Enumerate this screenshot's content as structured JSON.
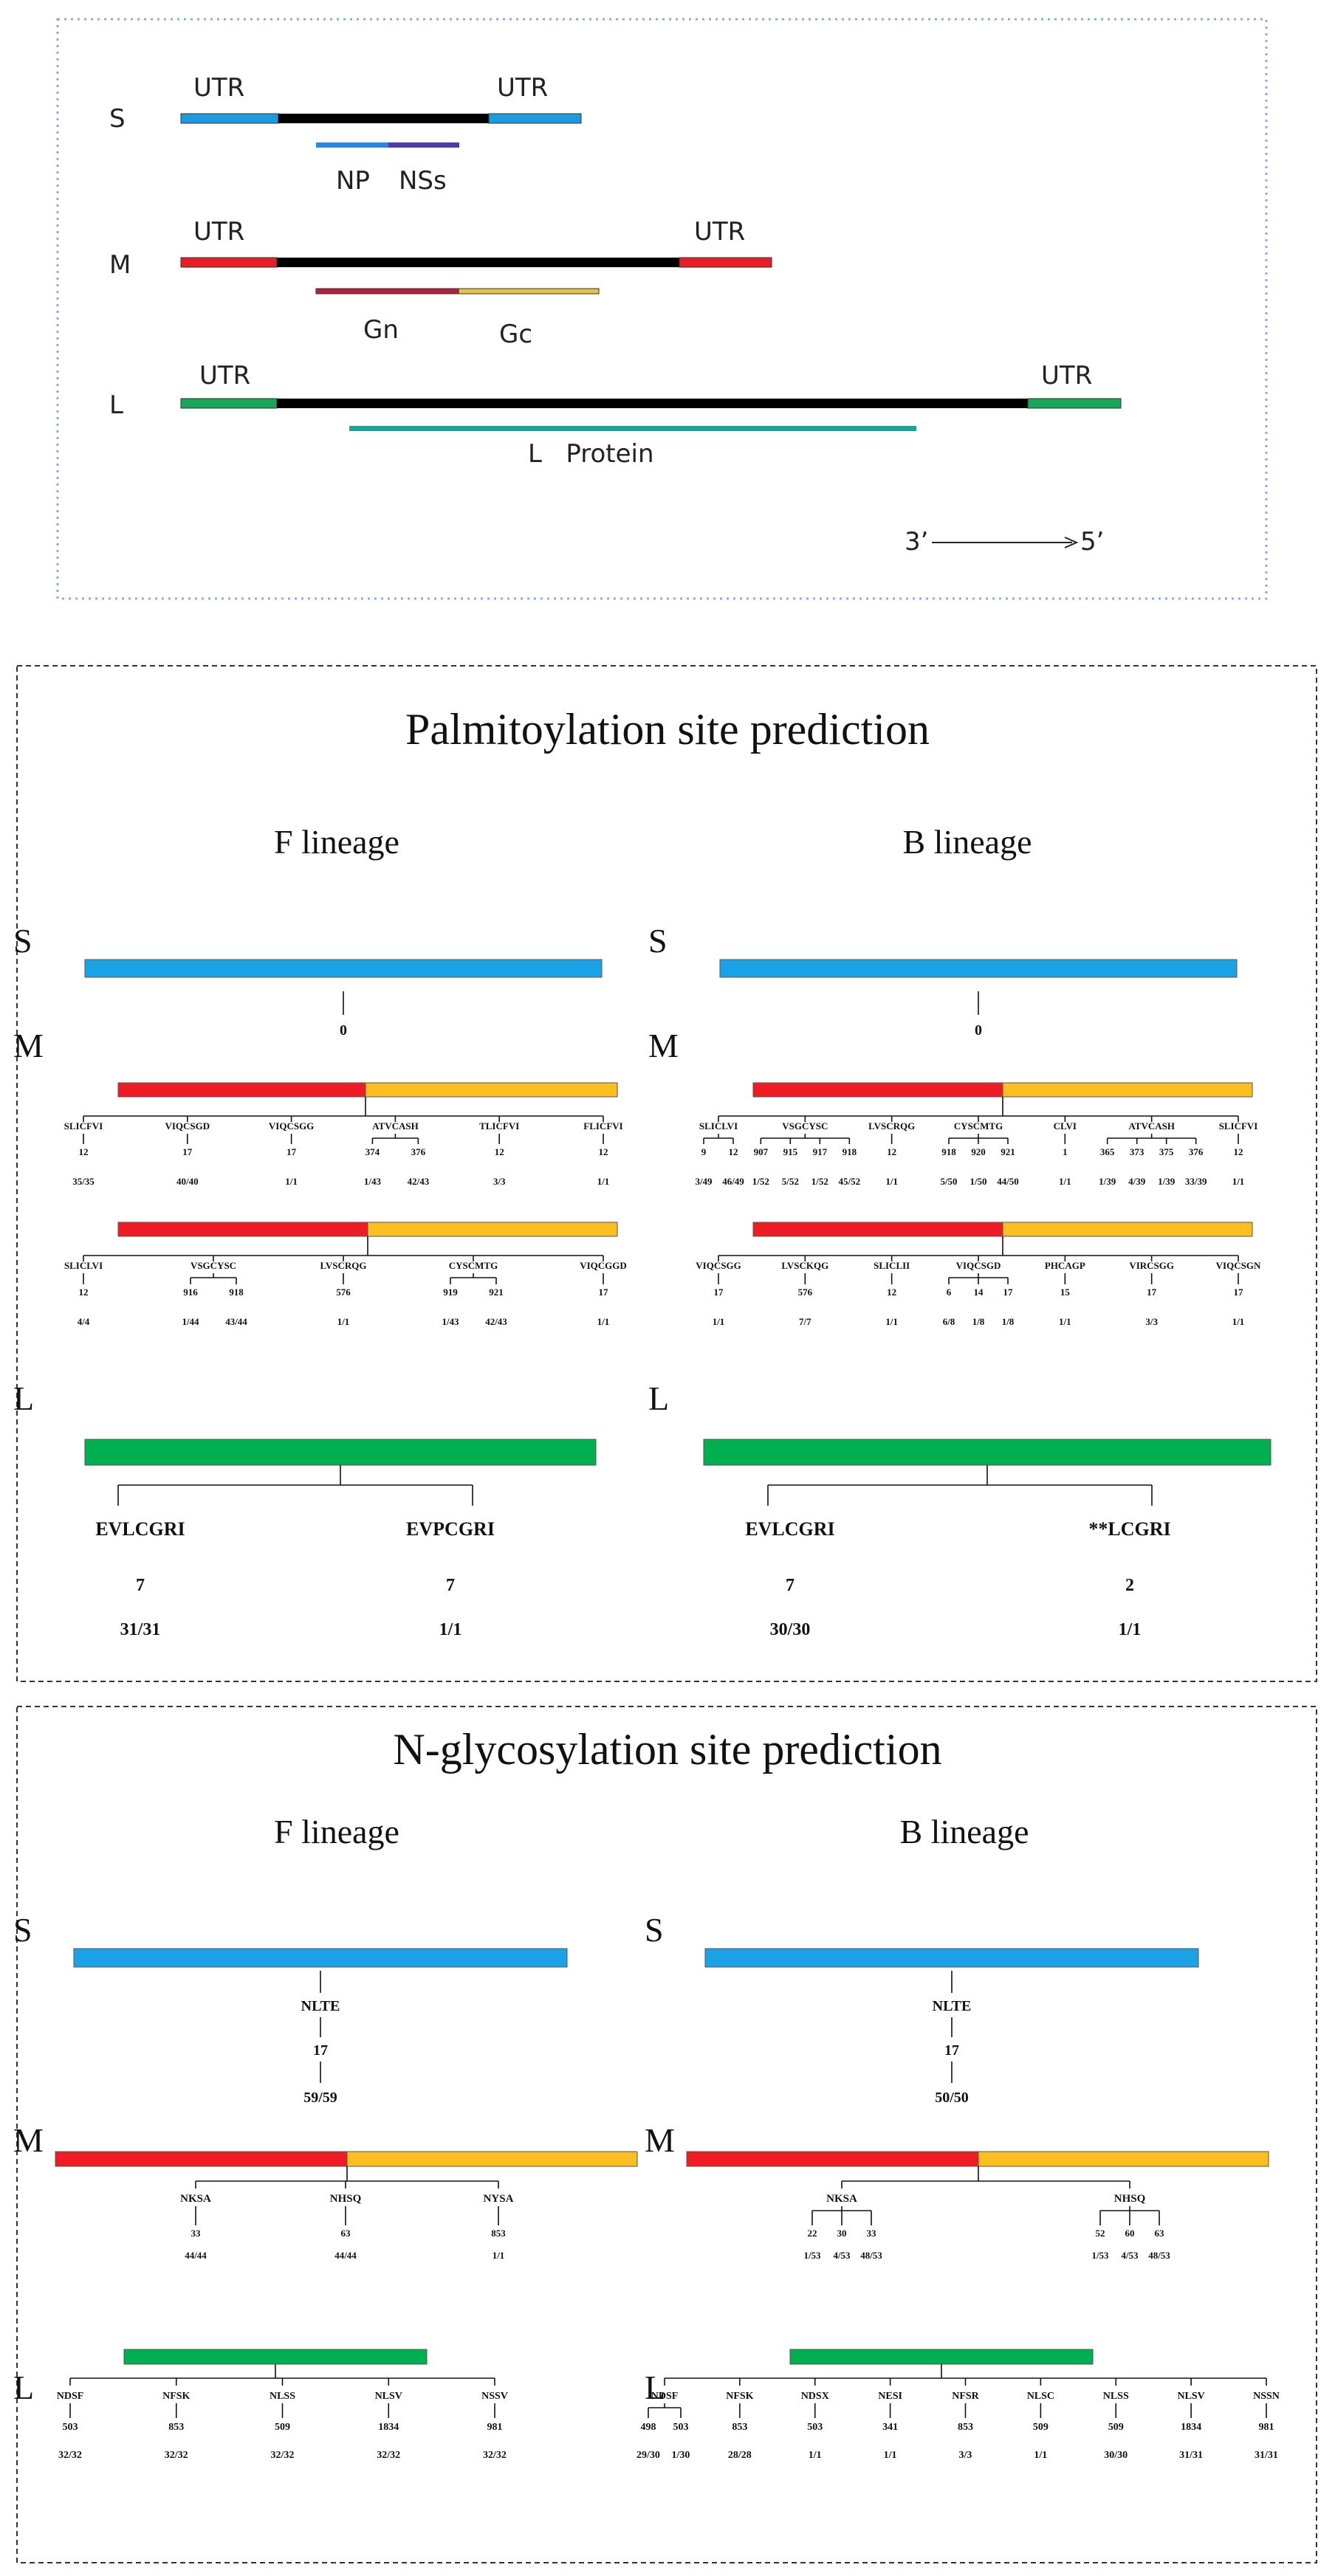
{
  "genome": {
    "segments": [
      {
        "name": "S",
        "utr_left": "UTR",
        "utr_right": "UTR",
        "utr_color": "#1E9BE0",
        "genes": [
          {
            "label": "NP",
            "color": "#2E86E0"
          },
          {
            "label": "NSs",
            "color": "#4B3FA5"
          }
        ]
      },
      {
        "name": "M",
        "utr_left": "UTR",
        "utr_right": "UTR",
        "utr_color": "#E61E28",
        "genes": [
          {
            "label": "Gn",
            "color": "#B3203A"
          },
          {
            "label": "Gc",
            "color": "#E3C24A"
          }
        ]
      },
      {
        "name": "L",
        "utr_left": "UTR",
        "utr_right": "UTR",
        "utr_color": "#19A55A",
        "protein_label": "L   Protein",
        "protein_color": "#1AA39A"
      }
    ],
    "direction": {
      "from": "3’",
      "to": "5’"
    },
    "core_color": "#000000"
  },
  "palmitoylation": {
    "title": "Palmitoylation site prediction",
    "colors": {
      "S": "#1BA1E6",
      "Gn": "#EE1C24",
      "Gc": "#FBBF21",
      "L": "#00B050"
    },
    "F": {
      "label": "F lineage",
      "S_site": "0",
      "M_rows": [
        {
          "sites": [
            {
              "motif": "SLICFVI",
              "nums": [
                {
                  "pos": "12",
                  "frac": "35/35"
                }
              ]
            },
            {
              "motif": "VIQCSGD",
              "nums": [
                {
                  "pos": "17",
                  "frac": "40/40"
                }
              ]
            },
            {
              "motif": "VIQCSGG",
              "nums": [
                {
                  "pos": "17",
                  "frac": "1/1"
                }
              ]
            },
            {
              "motif": "ATVCASH",
              "nums": [
                {
                  "pos": "374",
                  "frac": "1/43"
                },
                {
                  "pos": "376",
                  "frac": "42/43"
                }
              ]
            },
            {
              "motif": "TLICFVI",
              "nums": [
                {
                  "pos": "12",
                  "frac": "3/3"
                }
              ]
            },
            {
              "motif": "FLICFVI",
              "nums": [
                {
                  "pos": "12",
                  "frac": "1/1"
                }
              ]
            }
          ]
        },
        {
          "sites": [
            {
              "motif": "SLICLVI",
              "nums": [
                {
                  "pos": "12",
                  "frac": "4/4"
                }
              ]
            },
            {
              "motif": "VSGCYSC",
              "nums": [
                {
                  "pos": "916",
                  "frac": "1/44"
                },
                {
                  "pos": "918",
                  "frac": "43/44"
                }
              ]
            },
            {
              "motif": "LVSCRQG",
              "nums": [
                {
                  "pos": "576",
                  "frac": "1/1"
                }
              ]
            },
            {
              "motif": "CYSCMTG",
              "nums": [
                {
                  "pos": "919",
                  "frac": "1/43"
                },
                {
                  "pos": "921",
                  "frac": "42/43"
                }
              ]
            },
            {
              "motif": "VIQCGGD",
              "nums": [
                {
                  "pos": "17",
                  "frac": "1/1"
                }
              ]
            }
          ]
        }
      ],
      "L_sites": [
        {
          "motif": "EVLCGRI",
          "pos": "7",
          "frac": "31/31"
        },
        {
          "motif": "EVPCGRI",
          "pos": "7",
          "frac": "1/1"
        }
      ]
    },
    "B": {
      "label": "B lineage",
      "S_site": "0",
      "M_rows": [
        {
          "sites": [
            {
              "motif": "SLICLVI",
              "nums": [
                {
                  "pos": "9",
                  "frac": "3/49"
                },
                {
                  "pos": "12",
                  "frac": "46/49"
                }
              ]
            },
            {
              "motif": "VSGCYSC",
              "nums": [
                {
                  "pos": "907",
                  "frac": "1/52"
                },
                {
                  "pos": "915",
                  "frac": "5/52"
                },
                {
                  "pos": "917",
                  "frac": "1/52"
                },
                {
                  "pos": "918",
                  "frac": "45/52"
                }
              ]
            },
            {
              "motif": "LVSCRQG",
              "nums": [
                {
                  "pos": "12",
                  "frac": "1/1"
                }
              ]
            },
            {
              "motif": "CYSCMTG",
              "nums": [
                {
                  "pos": "918",
                  "frac": "5/50"
                },
                {
                  "pos": "920",
                  "frac": "1/50"
                },
                {
                  "pos": "921",
                  "frac": "44/50"
                }
              ]
            },
            {
              "motif": "CLVI",
              "nums": [
                {
                  "pos": "1",
                  "frac": "1/1"
                }
              ]
            },
            {
              "motif": "ATVCASH",
              "nums": [
                {
                  "pos": "365",
                  "frac": "1/39"
                },
                {
                  "pos": "373",
                  "frac": "4/39"
                },
                {
                  "pos": "375",
                  "frac": "1/39"
                },
                {
                  "pos": "376",
                  "frac": "33/39"
                }
              ]
            },
            {
              "motif": "SLICFVI",
              "nums": [
                {
                  "pos": "12",
                  "frac": "1/1"
                }
              ]
            }
          ]
        },
        {
          "sites": [
            {
              "motif": "VIQCSGG",
              "nums": [
                {
                  "pos": "17",
                  "frac": "1/1"
                }
              ]
            },
            {
              "motif": "LVSCKQG",
              "nums": [
                {
                  "pos": "576",
                  "frac": "7/7"
                }
              ]
            },
            {
              "motif": "SLICLII",
              "nums": [
                {
                  "pos": "12",
                  "frac": "1/1"
                }
              ]
            },
            {
              "motif": "VIQCSGD",
              "nums": [
                {
                  "pos": "6",
                  "frac": "6/8"
                },
                {
                  "pos": "14",
                  "frac": "1/8"
                },
                {
                  "pos": "17",
                  "frac": "1/8"
                }
              ]
            },
            {
              "motif": "PHCAGP",
              "nums": [
                {
                  "pos": "15",
                  "frac": "1/1"
                }
              ]
            },
            {
              "motif": "VIRCSGG",
              "nums": [
                {
                  "pos": "17",
                  "frac": "3/3"
                }
              ]
            },
            {
              "motif": "VIQCSGN",
              "nums": [
                {
                  "pos": "17",
                  "frac": "1/1"
                }
              ]
            }
          ]
        }
      ],
      "L_sites": [
        {
          "motif": "EVLCGRI",
          "pos": "7",
          "frac": "30/30"
        },
        {
          "motif": "**LCGRI",
          "pos": "2",
          "frac": "1/1"
        }
      ]
    }
  },
  "nglyco": {
    "title": "N-glycosylation site prediction",
    "colors": {
      "S": "#1BA1E6",
      "Gn": "#EE1C24",
      "Gc": "#FBBF21",
      "L": "#00B050"
    },
    "F": {
      "label": "F lineage",
      "S_site": {
        "motif": "NLTE",
        "pos": "17",
        "frac": "59/59"
      },
      "M_sites": [
        {
          "motif": "NKSA",
          "nums": [
            {
              "pos": "33",
              "frac": "44/44"
            }
          ]
        },
        {
          "motif": "NHSQ",
          "nums": [
            {
              "pos": "63",
              "frac": "44/44"
            }
          ]
        },
        {
          "motif": "NYSA",
          "nums": [
            {
              "pos": "853",
              "frac": "1/1"
            }
          ]
        }
      ],
      "L_sites": [
        {
          "motif": "NDSF",
          "nums": [
            {
              "pos": "503",
              "frac": "32/32"
            }
          ]
        },
        {
          "motif": "NFSK",
          "nums": [
            {
              "pos": "853",
              "frac": "32/32"
            }
          ]
        },
        {
          "motif": "NLSS",
          "nums": [
            {
              "pos": "509",
              "frac": "32/32"
            }
          ]
        },
        {
          "motif": "NLSV",
          "nums": [
            {
              "pos": "1834",
              "frac": "32/32"
            }
          ]
        },
        {
          "motif": "NSSV",
          "nums": [
            {
              "pos": "981",
              "frac": "32/32"
            }
          ]
        }
      ]
    },
    "B": {
      "label": "B lineage",
      "S_site": {
        "motif": "NLTE",
        "pos": "17",
        "frac": "50/50"
      },
      "M_sites": [
        {
          "motif": "NKSA",
          "nums": [
            {
              "pos": "22",
              "frac": "1/53"
            },
            {
              "pos": "30",
              "frac": "4/53"
            },
            {
              "pos": "33",
              "frac": "48/53"
            }
          ]
        },
        {
          "motif": "NHSQ",
          "nums": [
            {
              "pos": "52",
              "frac": "1/53"
            },
            {
              "pos": "60",
              "frac": "4/53"
            },
            {
              "pos": "63",
              "frac": "48/53"
            }
          ]
        }
      ],
      "L_sites": [
        {
          "motif": "NDSF",
          "nums": [
            {
              "pos": "498",
              "frac": "29/30"
            },
            {
              "pos": "503",
              "frac": "1/30"
            }
          ]
        },
        {
          "motif": "NFSK",
          "nums": [
            {
              "pos": "853",
              "frac": "28/28"
            }
          ]
        },
        {
          "motif": "NDSX",
          "nums": [
            {
              "pos": "503",
              "frac": "1/1"
            }
          ]
        },
        {
          "motif": "NESI",
          "nums": [
            {
              "pos": "341",
              "frac": "1/1"
            }
          ]
        },
        {
          "motif": "NFSR",
          "nums": [
            {
              "pos": "853",
              "frac": "3/3"
            }
          ]
        },
        {
          "motif": "NLSC",
          "nums": [
            {
              "pos": "509",
              "frac": "1/1"
            }
          ]
        },
        {
          "motif": "NLSS",
          "nums": [
            {
              "pos": "509",
              "frac": "30/30"
            }
          ]
        },
        {
          "motif": "NLSV",
          "nums": [
            {
              "pos": "1834",
              "frac": "31/31"
            }
          ]
        },
        {
          "motif": "NSSN",
          "nums": [
            {
              "pos": "981",
              "frac": "31/31"
            }
          ]
        }
      ]
    }
  }
}
